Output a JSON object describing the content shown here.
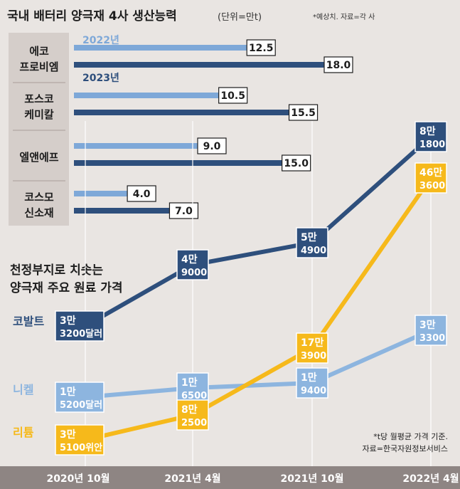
{
  "header": {
    "title": "국내 배터리 양극재 4사 생산능력",
    "unit": "(단위=만t)",
    "note": "*예상치. 자료=각 사"
  },
  "colors": {
    "y2022": "#7ea8d8",
    "y2023": "#2e4f7c",
    "cobalt": "#2e4f7c",
    "nickel": "#8db5df",
    "lithium": "#f6b91b",
    "label_panel": "#d5ceca",
    "bottom_bar": "#8e8583",
    "background": "#e9e5e2"
  },
  "chart_data": [
    {
      "type": "bar",
      "orientation": "horizontal",
      "title": "국내 배터리 양극재 4사 생산능력",
      "unit": "만t",
      "categories": [
        "에코\n프로비엠",
        "포스코\n케미칼",
        "엘앤에프",
        "코스모\n신소재"
      ],
      "series": [
        {
          "name": "2022년",
          "values": [
            12.5,
            10.5,
            9.0,
            4.0
          ]
        },
        {
          "name": "2023년",
          "values": [
            18.0,
            15.5,
            15.0,
            7.0
          ]
        }
      ],
      "value_labels": [
        [
          "12.5",
          "10.5",
          "9.0",
          "4.0"
        ],
        [
          "18.0",
          "15.5",
          "15.0",
          "7.0"
        ]
      ],
      "xlim": [
        0,
        18
      ]
    },
    {
      "type": "line",
      "title": "천정부지로 치솟는\n양극재 주요 원료 가격",
      "x": [
        "2020년 10월",
        "2021년 4월",
        "2021년 10월",
        "2022년 4월"
      ],
      "series": [
        {
          "name": "코발트",
          "values": [
            33200,
            49000,
            54900,
            81800
          ],
          "labels": [
            [
              "3만",
              "3200달러"
            ],
            [
              "4만",
              "9000"
            ],
            [
              "5만",
              "4900"
            ],
            [
              "8만",
              "1800"
            ]
          ]
        },
        {
          "name": "니켈",
          "values": [
            15200,
            16500,
            19400,
            33300
          ],
          "labels": [
            [
              "1만",
              "5200달러"
            ],
            [
              "1만",
              "6500"
            ],
            [
              "1만",
              "9400"
            ],
            [
              "3만",
              "3300"
            ]
          ]
        },
        {
          "name": "리튬",
          "values": [
            35100,
            82500,
            173900,
            463600
          ],
          "labels": [
            [
              "3만",
              "5100위안"
            ],
            [
              "8만",
              "2500"
            ],
            [
              "17만",
              "3900"
            ],
            [
              "46만",
              "3600"
            ]
          ]
        }
      ],
      "note": "*t당 월평균 가격 기준.",
      "source": "자료=한국자원정보서비스"
    }
  ]
}
